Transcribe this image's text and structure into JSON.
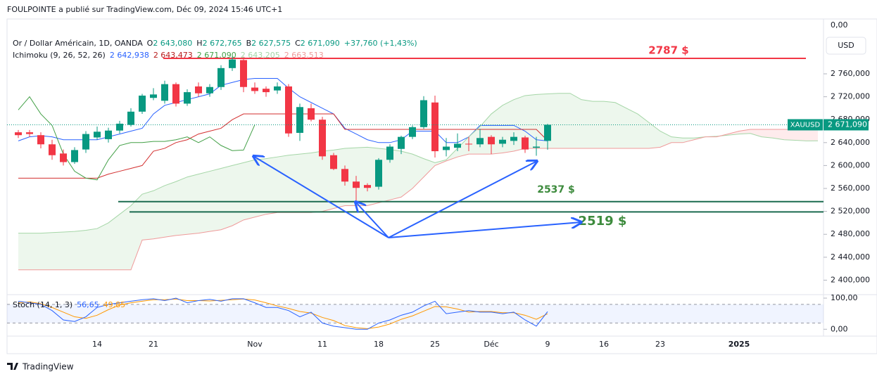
{
  "header": {
    "publisher": "FOULPOINTE a publié sur TradingView.com, Déc 09, 2024 15:46 UTC+1",
    "top_label": "0,00",
    "currency": "USD",
    "brand": "TradingView"
  },
  "chart_data": {
    "type": "candlestick",
    "legend": {
      "symbol": "Or / Dollar Américain, 1D, OANDA",
      "open_label": "O",
      "open": "2 643,080",
      "high_label": "H",
      "high": "2 672,765",
      "low_label": "B",
      "low": "2 627,575",
      "close_label": "C",
      "close": "2 671,090",
      "change": "+37,760 (+1,43%)"
    },
    "ichimoku_legend": {
      "name": "Ichimoku (9, 26, 52, 26)",
      "tenkan": "2 642,938",
      "kijun": "2 643,473",
      "chikou": "2 671,090",
      "span_a": "2 643,205",
      "span_b": "2 663,513"
    },
    "categories": [
      null,
      null,
      null,
      null,
      null,
      null,
      null,
      "14",
      null,
      null,
      null,
      null,
      "21",
      null,
      null,
      null,
      null,
      null,
      null,
      null,
      null,
      "Nov",
      null,
      null,
      null,
      null,
      null,
      "11",
      null,
      null,
      null,
      null,
      "18",
      null,
      null,
      null,
      null,
      "25",
      null,
      null,
      null,
      null,
      "Déc",
      null,
      null,
      null,
      null,
      "9",
      null,
      null,
      null,
      null,
      "16",
      null,
      null,
      null,
      null,
      "23",
      null,
      null,
      null,
      null,
      null,
      null,
      "2025",
      null,
      null,
      null,
      null,
      null,
      null,
      null
    ],
    "ohlc": {
      "up_color": "#089981",
      "down_color": "#f23645",
      "open": [
        2658,
        2658,
        2653,
        2637,
        2621,
        2606,
        2628,
        2649,
        2646,
        2661,
        2671,
        2694,
        2718,
        2713,
        2742,
        2708,
        2738,
        2726,
        2737,
        2770,
        2784,
        2736,
        2734,
        2731,
        2738,
        2657,
        2700,
        2680,
        2618,
        2594,
        2572,
        2566,
        2563,
        2610,
        2629,
        2650,
        2667,
        2710,
        2627,
        2631,
        2638,
        2637,
        2650,
        2638,
        2643,
        2649,
        2631,
        2643.08
      ],
      "high": [
        2662,
        2662,
        2658,
        2645,
        2628,
        2632,
        2660,
        2668,
        2666,
        2678,
        2700,
        2725,
        2735,
        2748,
        2745,
        2733,
        2745,
        2742,
        2775,
        2790,
        2790,
        2745,
        2738,
        2745,
        2742,
        2708,
        2708,
        2685,
        2622,
        2600,
        2582,
        2569,
        2613,
        2637,
        2652,
        2670,
        2721,
        2722,
        2648,
        2656,
        2650,
        2664,
        2653,
        2650,
        2658,
        2652,
        2650,
        2672.765
      ],
      "low": [
        2648,
        2650,
        2630,
        2610,
        2600,
        2603,
        2622,
        2645,
        2640,
        2656,
        2668,
        2690,
        2714,
        2708,
        2703,
        2704,
        2720,
        2720,
        2732,
        2765,
        2728,
        2725,
        2720,
        2725,
        2650,
        2643,
        2677,
        2610,
        2592,
        2565,
        2537,
        2555,
        2558,
        2605,
        2620,
        2646,
        2664,
        2614,
        2616,
        2625,
        2625,
        2632,
        2620,
        2632,
        2636,
        2622,
        2617,
        2627.575
      ],
      "close": [
        2653,
        2655,
        2637,
        2618,
        2606,
        2627,
        2655,
        2659,
        2661,
        2673,
        2694,
        2722,
        2724,
        2742,
        2708,
        2728,
        2726,
        2737,
        2770,
        2785,
        2737,
        2730,
        2728,
        2738,
        2656,
        2702,
        2680,
        2616,
        2594,
        2572,
        2561,
        2561,
        2610,
        2633,
        2650,
        2667,
        2714,
        2625,
        2633,
        2638,
        2637,
        2648,
        2637,
        2645,
        2650,
        2628,
        2633,
        2671.09
      ]
    },
    "series": [
      {
        "name": "tenkan",
        "color": "#2962ff",
        "values": [
          2643,
          2650,
          2652,
          2650,
          2645,
          2645,
          2645,
          2645,
          2650,
          2655,
          2660,
          2665,
          2690,
          2705,
          2710,
          2715,
          2720,
          2725,
          2740,
          2745,
          2750,
          2752,
          2752,
          2752,
          2735,
          2720,
          2710,
          2700,
          2690,
          2665,
          2655,
          2645,
          2640,
          2640,
          2645,
          2660,
          2660,
          2660,
          2640,
          2640,
          2650,
          2670,
          2670,
          2670,
          2670,
          2660,
          2645,
          2642.938,
          null,
          null,
          null,
          null,
          null,
          null,
          null,
          null,
          null,
          null,
          null,
          null,
          null,
          null,
          null,
          null,
          null,
          null,
          null,
          null,
          null,
          null,
          null,
          null
        ]
      },
      {
        "name": "kijun",
        "color": "#d32f2f",
        "values": [
          2578,
          2578,
          2578,
          2578,
          2578,
          2578,
          2578,
          2578,
          2585,
          2590,
          2595,
          2600,
          2625,
          2630,
          2640,
          2645,
          2655,
          2660,
          2665,
          2680,
          2690,
          2690,
          2690,
          2690,
          2690,
          2690,
          2690,
          2690,
          2690,
          2663,
          2663,
          2663,
          2663,
          2663,
          2663,
          2663,
          2663,
          2663,
          2663,
          2663,
          2663,
          2663,
          2663,
          2663,
          2663,
          2663,
          2663,
          2643.473,
          null,
          null,
          null,
          null,
          null,
          null,
          null,
          null,
          null,
          null,
          null,
          null,
          null,
          null,
          null,
          null,
          null,
          null,
          null,
          null,
          null,
          null,
          null,
          null
        ]
      },
      {
        "name": "chikou",
        "color": "#43a047",
        "values": [
          2697,
          2720,
          2690,
          2670,
          2620,
          2590,
          2578,
          2575,
          2610,
          2635,
          2640,
          2640,
          2642,
          2642,
          2645,
          2650,
          2640,
          2650,
          2635,
          2626,
          2627,
          2671.09,
          null,
          null,
          null,
          null,
          null,
          null,
          null,
          null,
          null,
          null,
          null,
          null,
          null,
          null,
          null,
          null,
          null,
          null,
          null,
          null,
          null,
          null,
          null,
          null,
          null,
          null,
          null,
          null,
          null,
          null,
          null,
          null,
          null,
          null,
          null,
          null,
          null,
          null,
          null,
          null,
          null,
          null,
          null,
          null,
          null,
          null,
          null,
          null,
          null,
          null
        ]
      },
      {
        "name": "span_a",
        "color": "#a5d6a7",
        "values": [
          2482,
          2482,
          2482,
          2483,
          2484,
          2485,
          2487,
          2490,
          2500,
          2515,
          2530,
          2550,
          2556,
          2565,
          2572,
          2580,
          2585,
          2590,
          2595,
          2600,
          2605,
          2610,
          2612,
          2615,
          2618,
          2620,
          2622,
          2625,
          2627,
          2630,
          2631,
          2632,
          2630,
          2628,
          2625,
          2620,
          2612,
          2605,
          2610,
          2630,
          2650,
          2668,
          2690,
          2705,
          2715,
          2722,
          2724,
          2725,
          2726,
          2726,
          2715,
          2712,
          2712,
          2710,
          2700,
          2690,
          2675,
          2660,
          2650,
          2648,
          2648,
          2650,
          2651,
          2653,
          2655,
          2656,
          2650,
          2648,
          2645,
          2644,
          2643,
          2643.205
        ]
      },
      {
        "name": "span_b",
        "color": "#ef9a9a",
        "values": [
          2418,
          2418,
          2418,
          2418,
          2418,
          2418,
          2418,
          2418,
          2418,
          2418,
          2418,
          2470,
          2472,
          2475,
          2478,
          2480,
          2482,
          2485,
          2488,
          2495,
          2505,
          2510,
          2515,
          2518,
          2518,
          2518,
          2518,
          2520,
          2525,
          2530,
          2530,
          2530,
          2535,
          2540,
          2545,
          2560,
          2580,
          2600,
          2608,
          2615,
          2620,
          2620,
          2620,
          2622,
          2625,
          2630,
          2630,
          2630,
          2630,
          2630,
          2630,
          2630,
          2630,
          2630,
          2630,
          2630,
          2630,
          2632,
          2640,
          2640,
          2645,
          2650,
          2650,
          2655,
          2660,
          2663,
          2663,
          2663,
          2663,
          2663,
          2663,
          2663.513
        ]
      }
    ],
    "ylim": [
      2376,
      2852
    ],
    "yticks": [
      {
        "value": 2400,
        "label": "2 400,000"
      },
      {
        "value": 2440,
        "label": "2 440,000"
      },
      {
        "value": 2480,
        "label": "2 480,000"
      },
      {
        "value": 2520,
        "label": "2 520,000"
      },
      {
        "value": 2560,
        "label": "2 560,000"
      },
      {
        "value": 2600,
        "label": "2 600,000"
      },
      {
        "value": 2640,
        "label": "2 640,000"
      },
      {
        "value": 2680,
        "label": "2 680,000"
      },
      {
        "value": 2720,
        "label": "2 720,000"
      },
      {
        "value": 2760,
        "label": "2 760,000"
      }
    ],
    "levels": [
      {
        "value": 2787,
        "label": "2787 $",
        "color": "#f23645"
      },
      {
        "value": 2537,
        "label": "2537 $",
        "color": "#1b6b4f"
      },
      {
        "value": 2519,
        "label": "2519 $",
        "color": "#1b6b4f"
      }
    ],
    "last": {
      "value": 2671.09,
      "symbol": "XAUUSD",
      "label": "2 671,090",
      "color": "#089981"
    },
    "stoch": {
      "name": "Stoch (14, 1, 3)",
      "k_label": "56,65",
      "d_label": "49,85",
      "k_color": "#2962ff",
      "d_color": "#ff9800",
      "ylim": [
        -22,
        109
      ],
      "yticks": [
        {
          "value": 0,
          "label": "0,00"
        },
        {
          "value": 100,
          "label": "100,00"
        }
      ],
      "bands": [
        20,
        80
      ],
      "k": [
        90,
        85,
        80,
        60,
        30,
        25,
        40,
        70,
        80,
        85,
        90,
        95,
        98,
        92,
        100,
        85,
        92,
        96,
        90,
        98,
        98,
        85,
        70,
        70,
        60,
        40,
        55,
        20,
        10,
        5,
        0,
        0,
        20,
        30,
        45,
        55,
        75,
        90,
        50,
        55,
        60,
        55,
        55,
        50,
        55,
        30,
        10,
        56.65
      ],
      "d": [
        85,
        88,
        82,
        70,
        55,
        40,
        35,
        45,
        63,
        78,
        85,
        90,
        95,
        95,
        97,
        92,
        92,
        91,
        93,
        95,
        97,
        94,
        85,
        75,
        67,
        57,
        52,
        38,
        28,
        12,
        5,
        2,
        7,
        17,
        32,
        43,
        58,
        73,
        72,
        65,
        55,
        57,
        57,
        53,
        53,
        45,
        32,
        49.85
      ]
    }
  }
}
